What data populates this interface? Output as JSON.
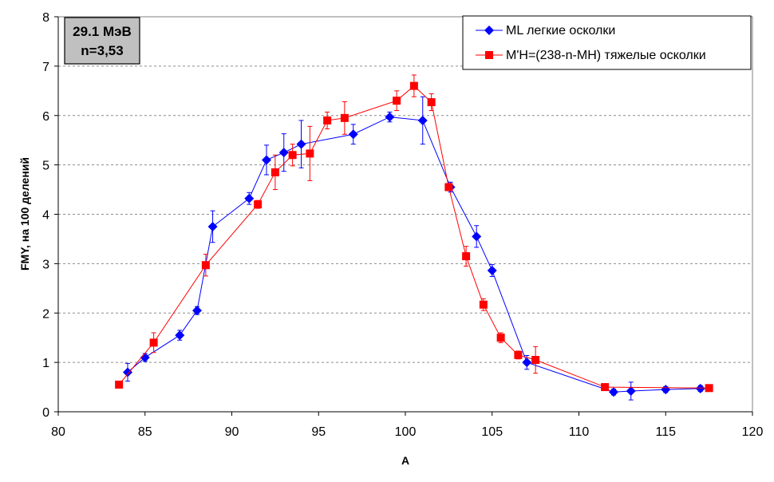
{
  "chart_data": {
    "type": "scatter",
    "xlabel": "A",
    "ylabel": "FMY, на 100 делений",
    "xlim": [
      80,
      120
    ],
    "ylim": [
      0,
      8
    ],
    "xticks": [
      80,
      85,
      90,
      95,
      100,
      105,
      110,
      115,
      120
    ],
    "yticks": [
      0,
      1,
      2,
      3,
      4,
      5,
      6,
      7,
      8
    ],
    "grid": "horizontal-dashed",
    "legend_position": "top-right",
    "annotation": {
      "line1": "29.1 МэВ",
      "line2": "n=3,53"
    },
    "series": [
      {
        "name": "ML легкие осколки",
        "color": "#0000ff",
        "marker": "diamond",
        "x": [
          84,
          85,
          87,
          88,
          88.9,
          91,
          92,
          93,
          94,
          97,
          99.1,
          101,
          102.6,
          104.1,
          105,
          107,
          112,
          113,
          115,
          117
        ],
        "y": [
          0.8,
          1.1,
          1.55,
          2.05,
          3.75,
          4.32,
          5.1,
          5.25,
          5.42,
          5.62,
          5.97,
          5.9,
          4.55,
          3.55,
          2.86,
          1.0,
          0.4,
          0.42,
          0.45,
          0.47
        ],
        "err": [
          0.18,
          0.08,
          0.1,
          0.08,
          0.32,
          0.12,
          0.3,
          0.38,
          0.48,
          0.2,
          0.1,
          0.48,
          0.1,
          0.22,
          0.12,
          0.14,
          0.06,
          0.18,
          0.06,
          0.06
        ]
      },
      {
        "name": "M'H=(238-n-MH) тяжелые осколки",
        "color": "#ff0000",
        "marker": "square",
        "x": [
          83.5,
          85.5,
          88.5,
          91.5,
          92.5,
          93.5,
          94.5,
          95.5,
          96.5,
          99.5,
          100.5,
          101.5,
          102.5,
          103.5,
          104.5,
          105.5,
          106.5,
          107.5,
          111.5,
          117.5
        ],
        "y": [
          0.55,
          1.4,
          2.97,
          4.2,
          4.85,
          5.2,
          5.23,
          5.9,
          5.95,
          6.3,
          6.6,
          6.27,
          4.55,
          3.15,
          2.17,
          1.5,
          1.15,
          1.05,
          0.5,
          0.48
        ],
        "err": [
          0.07,
          0.2,
          0.22,
          0.08,
          0.35,
          0.22,
          0.55,
          0.17,
          0.33,
          0.2,
          0.22,
          0.17,
          0.06,
          0.2,
          0.12,
          0.1,
          0.08,
          0.27,
          0.04,
          0.05
        ]
      }
    ]
  }
}
